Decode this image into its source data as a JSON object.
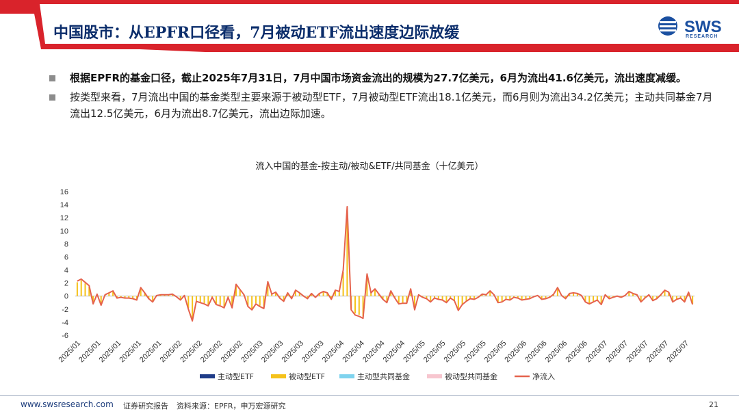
{
  "header": {
    "title": "中国股市：从EPFR口径看，7月被动ETF流出速度边际放缓",
    "logo_text": "SWS",
    "logo_subtext": "RESEARCH"
  },
  "bullets": [
    "根据EPFR的基金口径，截止2025年7月31日，7月中国市场资金流出的规模为27.7亿美元，6月为流出41.6亿美元，流出速度减缓。",
    "按类型来看，7月流出中国的基金类型主要来源于被动型ETF，7月被动型ETF流出18.1亿美元，而6月则为流出34.2亿美元；主动共同基金7月流出12.5亿美元，6月为流出8.7亿美元，流出边际加速。"
  ],
  "colors": {
    "title": "#0b2d6b",
    "red_band": "#d9232b",
    "active_etf": "#1f3c88",
    "passive_etf": "#f5c21b",
    "active_mutual": "#7fd3ee",
    "passive_mutual": "#f7c6cf",
    "net_flow": "#e5624d"
  },
  "chart_data": {
    "type": "bar",
    "title": "流入中国的基金-按主动/被动&ETF/共同基金（十亿美元）",
    "ylim": [
      -6,
      16
    ],
    "yticks": [
      "16",
      "14",
      "12",
      "10",
      "8",
      "6",
      "4",
      "2",
      "0",
      "-2",
      "-4",
      "-6"
    ],
    "xtick_labels": [
      "2025/01",
      "2025/01",
      "2025/01",
      "2025/01",
      "2025/01",
      "2025/02",
      "2025/02",
      "2025/02",
      "2025/02",
      "2025/03",
      "2025/03",
      "2025/03",
      "2025/03",
      "2025/04",
      "2025/04",
      "2025/04",
      "2025/04",
      "2025/05",
      "2025/05",
      "2025/05",
      "2025/05",
      "2025/05",
      "2025/06",
      "2025/06",
      "2025/06",
      "2025/06",
      "2025/07",
      "2025/07",
      "2025/07",
      "2025/07",
      "2025/07"
    ],
    "legend": [
      "主动型ETF",
      "被动型ETF",
      "主动型共同基金",
      "被动型共同基金",
      "净流入"
    ],
    "net_flow": [
      2.3,
      2.6,
      2.1,
      1.6,
      -1.2,
      0.3,
      -1.4,
      0.2,
      0.5,
      0.8,
      -0.3,
      -0.2,
      -0.3,
      -0.3,
      -0.4,
      -0.6,
      1.3,
      0.5,
      -0.4,
      -0.9,
      0.1,
      0.2,
      0.2,
      0.2,
      0.3,
      -0.1,
      -0.6,
      0.1,
      -2.0,
      -3.8,
      -0.8,
      -1.0,
      -1.2,
      -1.5,
      -0.2,
      -1.3,
      -1.5,
      -1.8,
      -0.2,
      -1.8,
      1.8,
      1.0,
      0.2,
      -1.6,
      -2.1,
      -1.2,
      -1.6,
      -1.9,
      2.2,
      0.3,
      0.6,
      -0.3,
      -0.8,
      0.5,
      -0.4,
      0.9,
      0.5,
      0.0,
      -0.4,
      0.4,
      -0.2,
      0.4,
      0.7,
      0.5,
      -0.5,
      0.9,
      0.7,
      4.0,
      13.7,
      -2.1,
      -2.9,
      -3.1,
      -3.4,
      3.4,
      0.5,
      1.1,
      0.3,
      -0.5,
      -1.0,
      0.8,
      -0.3,
      -1.2,
      -1.1,
      -1.1,
      1.1,
      -2.1,
      0.2,
      -0.2,
      -0.4,
      -0.9,
      -0.3,
      -0.5,
      -0.6,
      -1.0,
      -0.3,
      -0.7,
      -2.2,
      -1.3,
      -0.8,
      -0.4,
      -0.5,
      -0.2,
      0.3,
      0.2,
      0.8,
      0.2,
      -1.0,
      -0.9,
      -0.5,
      -0.6,
      -0.2,
      -0.3,
      -0.6,
      -0.5,
      -0.4,
      -0.1,
      0.1,
      -0.5,
      -0.4,
      -0.2,
      0.3,
      1.3,
      0.1,
      -0.4,
      0.4,
      0.5,
      0.4,
      0.1,
      -0.9,
      -1.2,
      -0.9,
      -0.6,
      -1.3,
      0.2,
      -0.4,
      -0.2,
      0.0,
      -0.2,
      0.1,
      0.7,
      0.4,
      0.2,
      -0.9,
      -0.3,
      0.2,
      -0.7,
      -0.4,
      0.2,
      0.9,
      0.6,
      -0.9,
      -0.5,
      -0.3,
      -0.9,
      0.6,
      -1.3
    ]
  },
  "footer": {
    "url": "www.swsresearch.com",
    "report": "证券研究报告",
    "source": "资料来源：EPFR，申万宏源研究",
    "page": "21"
  }
}
